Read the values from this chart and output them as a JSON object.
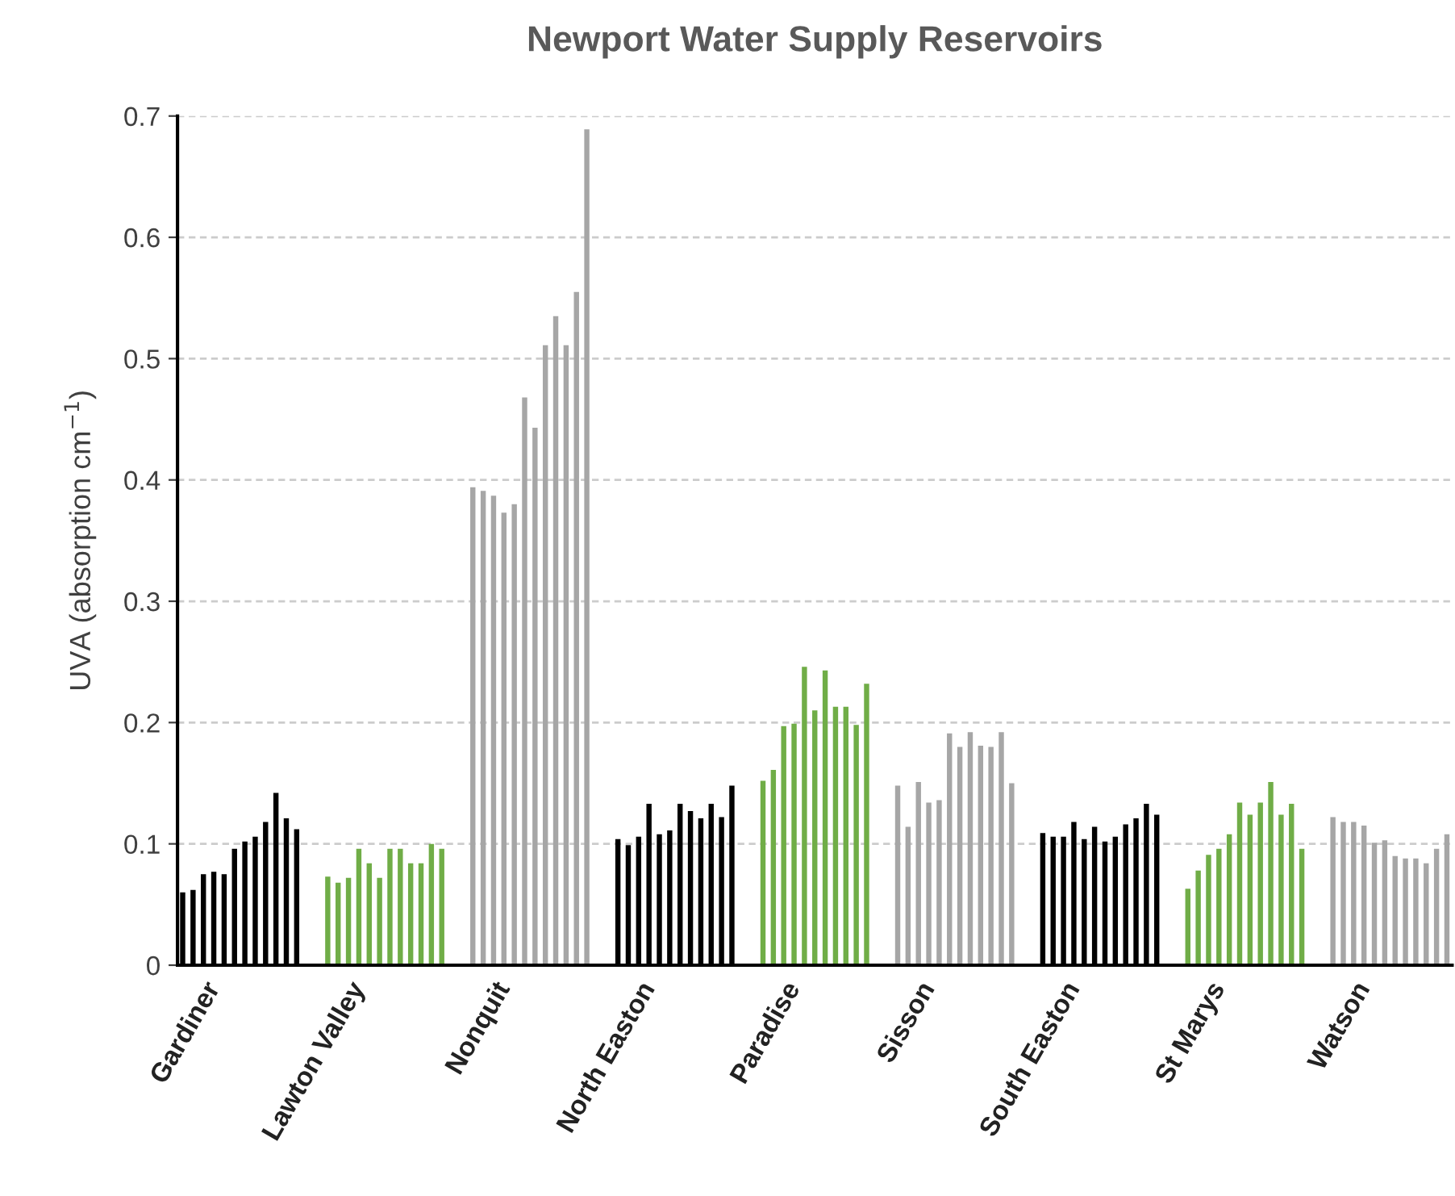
{
  "chart_data": {
    "type": "bar",
    "title": "Newport Water Supply Reservoirs",
    "ylabel": "UVA (absorption cm$^{−1}$)",
    "categories": [
      null,
      null,
      "Gardiner",
      null,
      null,
      null,
      null,
      null,
      null,
      null,
      null,
      null,
      null,
      null,
      null,
      null,
      "Lawton Valley",
      null,
      null,
      null,
      null,
      null,
      null,
      null,
      null,
      null,
      null,
      null,
      null,
      null,
      "Nonquit",
      null,
      null,
      null,
      null,
      null,
      null,
      null,
      null,
      null,
      null,
      null,
      null,
      null,
      "North Easton",
      null,
      null,
      null,
      null,
      null,
      null,
      null,
      null,
      null,
      null,
      null,
      null,
      null,
      "Paradise",
      null,
      null,
      null,
      null,
      null,
      null,
      null,
      null,
      null,
      null,
      null,
      null,
      "Sisson",
      null,
      null,
      null,
      null,
      null,
      null,
      null,
      null,
      null,
      null,
      null,
      null,
      null,
      "South Easton",
      null,
      null,
      null,
      null,
      null,
      null,
      null,
      null,
      null,
      null,
      null,
      null,
      null,
      "St Marys",
      null,
      null,
      null,
      null,
      null,
      null,
      null,
      null,
      null,
      null,
      null,
      null,
      null,
      "Watson",
      null,
      null,
      null,
      null,
      null,
      null,
      null,
      null,
      null
    ],
    "values": [
      0.06,
      0.062,
      0.075,
      0.077,
      0.075,
      0.096,
      0.102,
      0.106,
      0.118,
      0.142,
      0.121,
      0.112,
      null,
      null,
      0.073,
      0.068,
      0.072,
      0.096,
      0.084,
      0.072,
      0.096,
      0.096,
      0.084,
      0.084,
      0.1,
      0.096,
      null,
      null,
      0.394,
      0.391,
      0.387,
      0.373,
      0.38,
      0.468,
      0.443,
      0.511,
      0.535,
      0.511,
      0.555,
      0.689,
      null,
      null,
      0.104,
      0.099,
      0.106,
      0.133,
      0.108,
      0.111,
      0.133,
      0.127,
      0.121,
      0.133,
      0.122,
      0.148,
      null,
      null,
      0.152,
      0.161,
      0.197,
      0.199,
      0.246,
      0.21,
      0.243,
      0.213,
      0.213,
      0.198,
      0.232,
      null,
      null,
      0.148,
      0.114,
      0.151,
      0.134,
      0.136,
      0.191,
      0.18,
      0.192,
      0.181,
      0.18,
      0.192,
      0.15,
      null,
      null,
      0.109,
      0.106,
      0.106,
      0.118,
      0.104,
      0.114,
      0.102,
      0.106,
      0.116,
      0.121,
      0.133,
      0.124,
      null,
      null,
      0.063,
      0.078,
      0.091,
      0.096,
      0.108,
      0.134,
      0.124,
      0.134,
      0.151,
      0.124,
      0.133,
      0.096,
      null,
      null,
      0.122,
      0.118,
      0.118,
      0.115,
      0.101,
      0.103,
      0.09,
      0.088,
      0.088,
      0.084,
      0.096,
      0.108
    ],
    "colors": [
      "#000000",
      "#000000",
      "#000000",
      "#000000",
      "#000000",
      "#000000",
      "#000000",
      "#000000",
      "#000000",
      "#000000",
      "#000000",
      "#000000",
      null,
      null,
      "#70ad47",
      "#70ad47",
      "#70ad47",
      "#70ad47",
      "#70ad47",
      "#70ad47",
      "#70ad47",
      "#70ad47",
      "#70ad47",
      "#70ad47",
      "#70ad47",
      "#70ad47",
      null,
      null,
      "#a6a6a6",
      "#a6a6a6",
      "#a6a6a6",
      "#a6a6a6",
      "#a6a6a6",
      "#a6a6a6",
      "#a6a6a6",
      "#a6a6a6",
      "#a6a6a6",
      "#a6a6a6",
      "#a6a6a6",
      "#a6a6a6",
      null,
      null,
      "#000000",
      "#000000",
      "#000000",
      "#000000",
      "#000000",
      "#000000",
      "#000000",
      "#000000",
      "#000000",
      "#000000",
      "#000000",
      "#000000",
      null,
      null,
      "#70ad47",
      "#70ad47",
      "#70ad47",
      "#70ad47",
      "#70ad47",
      "#70ad47",
      "#70ad47",
      "#70ad47",
      "#70ad47",
      "#70ad47",
      "#70ad47",
      null,
      null,
      "#a6a6a6",
      "#a6a6a6",
      "#a6a6a6",
      "#a6a6a6",
      "#a6a6a6",
      "#a6a6a6",
      "#a6a6a6",
      "#a6a6a6",
      "#a6a6a6",
      "#a6a6a6",
      "#a6a6a6",
      "#a6a6a6",
      null,
      null,
      "#000000",
      "#000000",
      "#000000",
      "#000000",
      "#000000",
      "#000000",
      "#000000",
      "#000000",
      "#000000",
      "#000000",
      "#000000",
      "#000000",
      null,
      null,
      "#70ad47",
      "#70ad47",
      "#70ad47",
      "#70ad47",
      "#70ad47",
      "#70ad47",
      "#70ad47",
      "#70ad47",
      "#70ad47",
      "#70ad47",
      "#70ad47",
      "#70ad47",
      null,
      null,
      "#a6a6a6",
      "#a6a6a6",
      "#a6a6a6",
      "#a6a6a6",
      "#a6a6a6",
      "#a6a6a6",
      "#a6a6a6",
      "#a6a6a6",
      "#a6a6a6",
      "#a6a6a6",
      "#a6a6a6",
      "#a6a6a6"
    ],
    "ylim": [
      0,
      0.7
    ],
    "yticks": [
      0,
      0.1,
      0.2,
      0.3,
      0.4,
      0.5,
      0.6,
      0.7
    ],
    "grid": "y",
    "legend": false
  }
}
